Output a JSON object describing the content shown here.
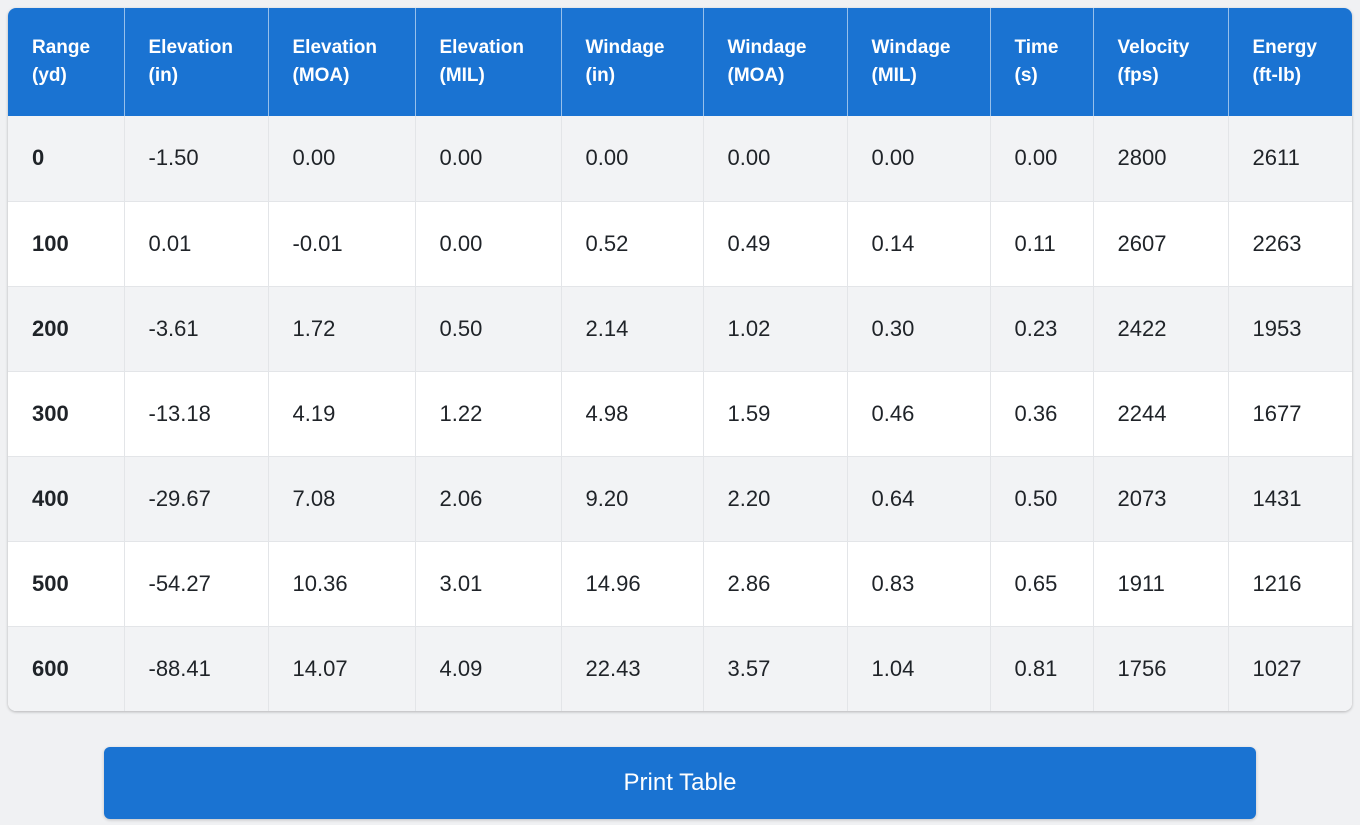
{
  "table": {
    "columns": [
      {
        "line1": "Range",
        "line2": "(yd)"
      },
      {
        "line1": "Elevation",
        "line2": "(in)"
      },
      {
        "line1": "Elevation",
        "line2": "(MOA)"
      },
      {
        "line1": "Elevation",
        "line2": "(MIL)"
      },
      {
        "line1": "Windage",
        "line2": "(in)"
      },
      {
        "line1": "Windage",
        "line2": "(MOA)"
      },
      {
        "line1": "Windage",
        "line2": "(MIL)"
      },
      {
        "line1": "Time",
        "line2": "(s)"
      },
      {
        "line1": "Velocity",
        "line2": "(fps)"
      },
      {
        "line1": "Energy",
        "line2": "(ft-lb)"
      }
    ],
    "rows": [
      [
        "0",
        "-1.50",
        "0.00",
        "0.00",
        "0.00",
        "0.00",
        "0.00",
        "0.00",
        "2800",
        "2611"
      ],
      [
        "100",
        "0.01",
        "-0.01",
        "0.00",
        "0.52",
        "0.49",
        "0.14",
        "0.11",
        "2607",
        "2263"
      ],
      [
        "200",
        "-3.61",
        "1.72",
        "0.50",
        "2.14",
        "1.02",
        "0.30",
        "0.23",
        "2422",
        "1953"
      ],
      [
        "300",
        "-13.18",
        "4.19",
        "1.22",
        "4.98",
        "1.59",
        "0.46",
        "0.36",
        "2244",
        "1677"
      ],
      [
        "400",
        "-29.67",
        "7.08",
        "2.06",
        "9.20",
        "2.20",
        "0.64",
        "0.50",
        "2073",
        "1431"
      ],
      [
        "500",
        "-54.27",
        "10.36",
        "3.01",
        "14.96",
        "2.86",
        "0.83",
        "0.65",
        "1911",
        "1216"
      ],
      [
        "600",
        "-88.41",
        "14.07",
        "4.09",
        "22.43",
        "3.57",
        "1.04",
        "0.81",
        "1756",
        "1027"
      ]
    ]
  },
  "print_button_label": "Print Table",
  "colors": {
    "accent": "#1a73d2",
    "row_alt": "#f2f3f5",
    "background": "#f0f1f3"
  }
}
